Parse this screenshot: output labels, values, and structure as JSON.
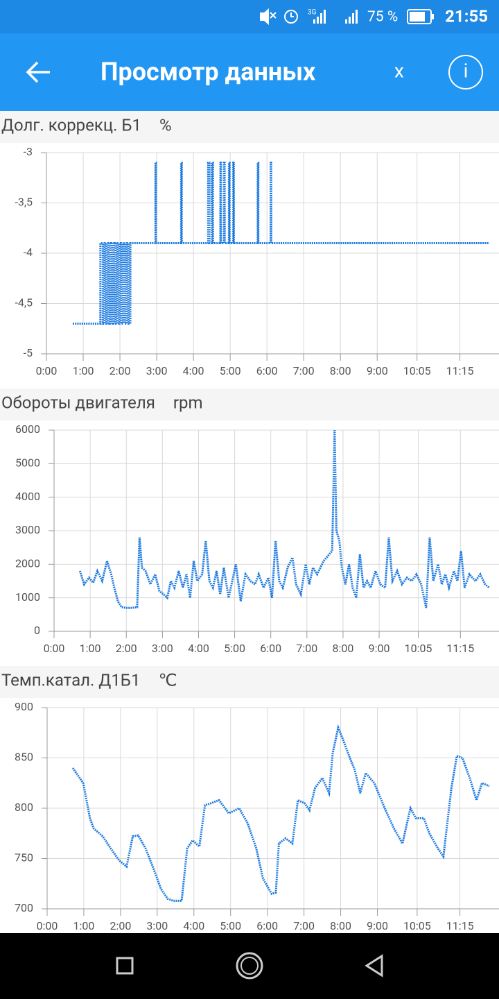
{
  "status_bar": {
    "network": "3G",
    "battery": "75 %",
    "time": "21:55"
  },
  "app_bar": {
    "title": "Просмотр данных",
    "close": "x",
    "info": "i"
  },
  "chart_data": [
    {
      "type": "line",
      "title": "Долг. коррекц. Б1",
      "unit": "%",
      "color": "#1e7be0",
      "grid": true,
      "xlim": [
        0,
        723
      ],
      "xticks": [
        {
          "value": 0,
          "label": "0:00"
        },
        {
          "value": 60,
          "label": "1:00"
        },
        {
          "value": 120,
          "label": "2:00"
        },
        {
          "value": 180,
          "label": "3:00"
        },
        {
          "value": 240,
          "label": "4:00"
        },
        {
          "value": 300,
          "label": "5:00"
        },
        {
          "value": 360,
          "label": "6:00"
        },
        {
          "value": 420,
          "label": "7:00"
        },
        {
          "value": 480,
          "label": "8:00"
        },
        {
          "value": 540,
          "label": "9:00"
        },
        {
          "value": 605,
          "label": "10:05"
        },
        {
          "value": 675,
          "label": "11:15"
        }
      ],
      "ylim": [
        -5,
        -3
      ],
      "yticks": [
        -5,
        {
          "value": -4.5,
          "label": "-4,5"
        },
        -4,
        {
          "value": -3.5,
          "label": "-3,5"
        },
        -3
      ],
      "x": [
        43,
        88,
        88,
        92,
        92,
        95,
        95,
        98,
        98,
        101,
        101,
        104,
        104,
        107,
        107,
        110,
        110,
        113,
        113,
        116,
        116,
        119,
        119,
        122,
        122,
        125,
        125,
        128,
        128,
        131,
        131,
        134,
        134,
        137,
        137,
        178,
        178,
        179,
        179,
        220,
        220,
        221,
        221,
        264,
        264,
        266,
        266,
        270,
        270,
        272,
        272,
        284,
        284,
        285,
        285,
        290,
        290,
        291,
        291,
        298,
        298,
        299,
        299,
        305,
        305,
        306,
        306,
        345,
        345,
        346,
        346,
        366,
        366,
        367,
        367,
        723
      ],
      "values": [
        -4.7,
        -4.7,
        -3.9,
        -3.9,
        -4.7,
        -4.7,
        -3.9,
        -3.9,
        -4.7,
        -4.7,
        -3.9,
        -3.9,
        -4.7,
        -4.7,
        -3.9,
        -3.9,
        -4.7,
        -4.7,
        -3.9,
        -3.9,
        -4.7,
        -4.7,
        -3.9,
        -3.9,
        -4.7,
        -4.7,
        -3.9,
        -3.9,
        -4.7,
        -4.7,
        -3.9,
        -3.9,
        -4.7,
        -4.7,
        -3.9,
        -3.9,
        -3.1,
        -3.1,
        -3.9,
        -3.9,
        -3.1,
        -3.1,
        -3.9,
        -3.9,
        -3.1,
        -3.1,
        -3.9,
        -3.9,
        -3.1,
        -3.1,
        -3.9,
        -3.9,
        -3.1,
        -3.1,
        -3.9,
        -3.9,
        -3.1,
        -3.1,
        -3.9,
        -3.9,
        -3.1,
        -3.1,
        -3.9,
        -3.9,
        -3.1,
        -3.1,
        -3.9,
        -3.9,
        -3.1,
        -3.1,
        -3.9,
        -3.9,
        -3.1,
        -3.1,
        -3.9,
        -3.9
      ]
    },
    {
      "type": "line",
      "title": "Обороты двигателя",
      "unit": "rpm",
      "color": "#1e7be0",
      "grid": true,
      "xlim": [
        0,
        723
      ],
      "xticks": [
        {
          "value": 0,
          "label": "0:00"
        },
        {
          "value": 60,
          "label": "1:00"
        },
        {
          "value": 120,
          "label": "2:00"
        },
        {
          "value": 180,
          "label": "3:00"
        },
        {
          "value": 240,
          "label": "4:00"
        },
        {
          "value": 300,
          "label": "5:00"
        },
        {
          "value": 360,
          "label": "6:00"
        },
        {
          "value": 420,
          "label": "7:00"
        },
        {
          "value": 480,
          "label": "8:00"
        },
        {
          "value": 540,
          "label": "9:00"
        },
        {
          "value": 605,
          "label": "10:05"
        },
        {
          "value": 675,
          "label": "11:15"
        }
      ],
      "ylim": [
        0,
        6000
      ],
      "yticks": [
        0,
        1000,
        2000,
        3000,
        4000,
        5000,
        6000
      ],
      "x": [
        43,
        50,
        58,
        65,
        72,
        80,
        88,
        95,
        100,
        106,
        112,
        120,
        130,
        138,
        142,
        146,
        152,
        160,
        168,
        175,
        182,
        188,
        194,
        200,
        207,
        214,
        220,
        226,
        232,
        238,
        246,
        252,
        258,
        264,
        270,
        276,
        282,
        290,
        296,
        302,
        310,
        318,
        326,
        334,
        340,
        348,
        356,
        362,
        368,
        374,
        380,
        388,
        396,
        402,
        410,
        418,
        424,
        430,
        437,
        448,
        462,
        466,
        469,
        474,
        478,
        484,
        490,
        496,
        502,
        508,
        514,
        520,
        526,
        534,
        542,
        550,
        556,
        562,
        570,
        578,
        586,
        594,
        602,
        610,
        618,
        624,
        630,
        638,
        644,
        650,
        656,
        664,
        670,
        676,
        682,
        690,
        700,
        708,
        716,
        723
      ],
      "values": [
        1800,
        1400,
        1600,
        1450,
        1800,
        1500,
        2100,
        1700,
        1300,
        900,
        720,
        700,
        700,
        720,
        2800,
        1900,
        1800,
        1400,
        1700,
        1200,
        1100,
        1000,
        1500,
        1300,
        1800,
        1300,
        1700,
        1000,
        2100,
        1500,
        1700,
        2700,
        1500,
        1300,
        1800,
        1100,
        1900,
        1000,
        1500,
        2000,
        900,
        1700,
        1500,
        1400,
        1700,
        1300,
        1600,
        1000,
        2700,
        1500,
        1300,
        1900,
        2200,
        1400,
        1100,
        2000,
        1400,
        1900,
        1700,
        2100,
        2400,
        6000,
        3000,
        2700,
        1900,
        1400,
        2000,
        1300,
        1000,
        2300,
        1300,
        1500,
        1300,
        1800,
        1400,
        1300,
        2800,
        1500,
        1800,
        1400,
        1600,
        1500,
        1700,
        1400,
        700,
        2800,
        1500,
        2000,
        1400,
        1700,
        1300,
        1800,
        1500,
        2400,
        1300,
        1700,
        1500,
        1700,
        1400,
        1300
      ]
    },
    {
      "type": "line",
      "title": "Темп.катал. Д1Б1",
      "unit": "℃",
      "color": "#1e7be0",
      "grid": true,
      "xlim": [
        0,
        723
      ],
      "xticks": [
        {
          "value": 0,
          "label": "0:00"
        },
        {
          "value": 60,
          "label": "1:00"
        },
        {
          "value": 120,
          "label": "2:00"
        },
        {
          "value": 180,
          "label": "3:00"
        },
        {
          "value": 240,
          "label": "4:00"
        },
        {
          "value": 300,
          "label": "5:00"
        },
        {
          "value": 360,
          "label": "6:00"
        },
        {
          "value": 420,
          "label": "7:00"
        },
        {
          "value": 480,
          "label": "8:00"
        },
        {
          "value": 540,
          "label": "9:00"
        },
        {
          "value": 605,
          "label": "10:05"
        },
        {
          "value": 675,
          "label": "11:15"
        }
      ],
      "ylim": [
        700,
        900
      ],
      "yticks": [
        700,
        750,
        800,
        850,
        900
      ],
      "x": [
        42,
        59,
        70,
        76,
        91,
        104,
        118,
        130,
        140,
        149,
        161,
        174,
        186,
        197,
        206,
        220,
        229,
        238,
        249,
        258,
        268,
        281,
        297,
        314,
        328,
        342,
        353,
        367,
        374,
        379,
        390,
        401,
        410,
        421,
        429,
        438,
        450,
        461,
        467,
        476,
        484,
        495,
        503,
        512,
        521,
        535,
        552,
        567,
        581,
        594,
        603,
        616,
        625,
        639,
        648,
        661,
        670,
        679,
        691,
        702,
        711,
        723
      ],
      "values": [
        840,
        825,
        790,
        780,
        772,
        760,
        748,
        742,
        772,
        773,
        760,
        740,
        720,
        710,
        708,
        708,
        760,
        768,
        762,
        803,
        805,
        808,
        795,
        800,
        785,
        760,
        730,
        715,
        716,
        765,
        770,
        765,
        808,
        805,
        798,
        820,
        830,
        815,
        855,
        880,
        868,
        850,
        838,
        815,
        835,
        825,
        800,
        780,
        765,
        800,
        790,
        790,
        775,
        760,
        752,
        820,
        852,
        850,
        830,
        808,
        825,
        822
      ]
    }
  ]
}
